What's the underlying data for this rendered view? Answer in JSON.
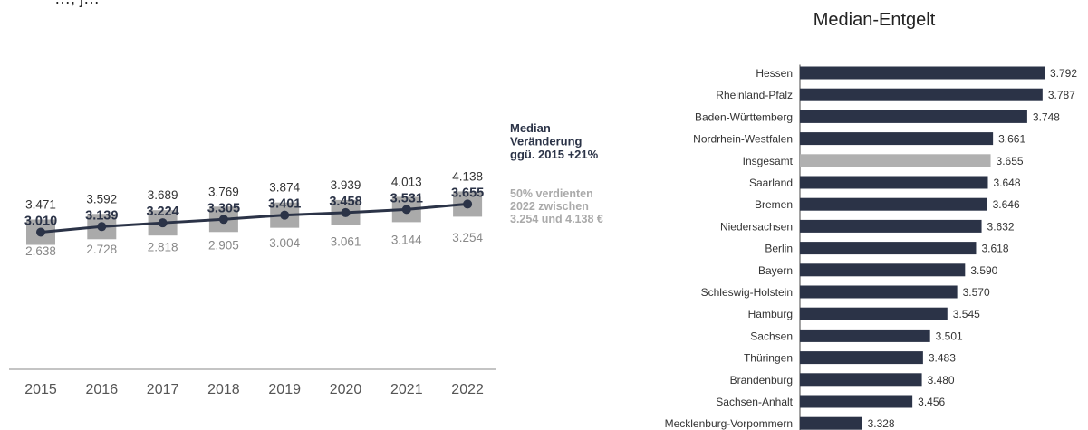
{
  "header_fragment": "…, j…",
  "chart_data": [
    {
      "type": "line",
      "title": "",
      "x": [
        "2015",
        "2016",
        "2017",
        "2018",
        "2019",
        "2020",
        "2021",
        "2022"
      ],
      "series": [
        {
          "name": "Median",
          "values": [
            3010,
            3139,
            3224,
            3305,
            3401,
            3458,
            3531,
            3655
          ]
        }
      ],
      "upper_quartile": [
        3471,
        3592,
        3689,
        3769,
        3874,
        3939,
        4013,
        4138
      ],
      "lower_quartile": [
        2638,
        2728,
        2818,
        2905,
        3004,
        3061,
        3144,
        3254
      ],
      "labels": {
        "median": [
          "3.010",
          "3.139",
          "3.224",
          "3.305",
          "3.401",
          "3.458",
          "3.531",
          "3.655"
        ],
        "upper": [
          "3.471",
          "3.592",
          "3.689",
          "3.769",
          "3.874",
          "3.939",
          "4.013",
          "4.138"
        ],
        "lower": [
          "2.638",
          "2.728",
          "2.818",
          "2.905",
          "3.004",
          "3.061",
          "3.144",
          "3.254"
        ]
      },
      "annotations": {
        "median_change": [
          "Median",
          "Veränderung",
          "ggü. 2015 +21%"
        ],
        "range_note": [
          "50% verdienten",
          "2022 zwischen",
          "3.254 und 4.138 €"
        ]
      },
      "colors": {
        "line": "#2b3347",
        "box": "#aaaaaa"
      }
    },
    {
      "type": "bar",
      "orientation": "horizontal",
      "title": "Median-Entgelt",
      "categories": [
        "Hessen",
        "Rheinland-Pfalz",
        "Baden-Württemberg",
        "Nordrhein-Westfalen",
        "Insgesamt",
        "Saarland",
        "Bremen",
        "Niedersachsen",
        "Berlin",
        "Bayern",
        "Schleswig-Holstein",
        "Hamburg",
        "Sachsen",
        "Thüringen",
        "Brandenburg",
        "Sachsen-Anhalt",
        "Mecklenburg-Vorpommern"
      ],
      "values": [
        3792,
        3787,
        3748,
        3661,
        3655,
        3648,
        3646,
        3632,
        3618,
        3590,
        3570,
        3545,
        3501,
        3483,
        3480,
        3456,
        3328
      ],
      "value_labels": [
        "3.792",
        "3.787",
        "3.748",
        "3.661",
        "3.655",
        "3.648",
        "3.646",
        "3.632",
        "3.618",
        "3.590",
        "3.570",
        "3.545",
        "3.501",
        "3.483",
        "3.480",
        "3.456",
        "3.328"
      ],
      "highlight": "Insgesamt",
      "colors": {
        "bar": "#2b3347",
        "highlight": "#b0b0b0"
      }
    }
  ]
}
